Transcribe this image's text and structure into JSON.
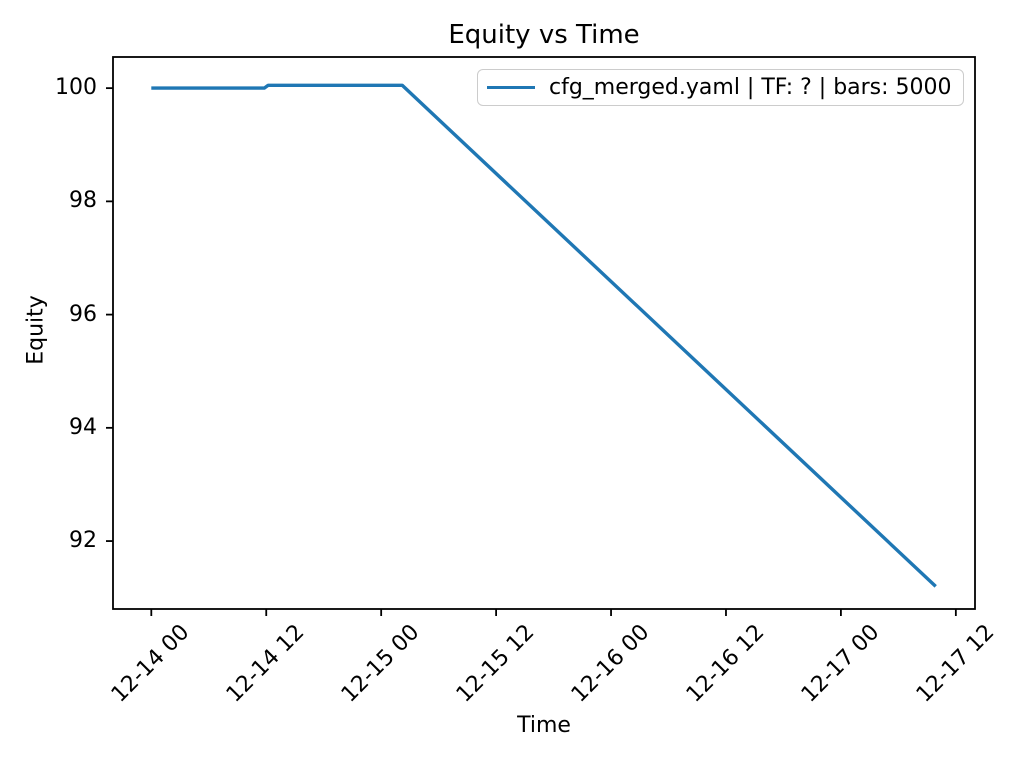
{
  "figure": {
    "background": "#ffffff",
    "text_color": "#000000",
    "spine_color": "#000000",
    "legend_border_color": "#cccccc"
  },
  "chart_data": {
    "type": "line",
    "title": "Equity vs Time",
    "xlabel": "Time",
    "ylabel": "Equity",
    "grid": false,
    "x_axis": {
      "tick_labels": [
        "12-14 00",
        "12-14 12",
        "12-15 00",
        "12-15 12",
        "12-16 00",
        "12-16 12",
        "12-17 00",
        "12-17 12"
      ],
      "tick_hours": [
        0,
        12,
        24,
        36,
        48,
        60,
        72,
        84
      ],
      "range_hours": [
        -4.0,
        86.0
      ],
      "tick_rotation_deg": 45
    },
    "y_axis": {
      "tick_labels": [
        "100",
        "98",
        "96",
        "94",
        "92"
      ],
      "tick_values": [
        100,
        98,
        96,
        94,
        92
      ],
      "range": [
        90.8,
        100.55
      ]
    },
    "legend": {
      "position": "upper right",
      "entries": [
        {
          "label": "cfg_merged.yaml | TF: ? | bars: 5000",
          "color": "#1f77b4"
        }
      ]
    },
    "series": [
      {
        "name": "cfg_merged.yaml | TF: ? | bars: 5000",
        "color": "#1f77b4",
        "line_width": 3.4,
        "points_hours_equity": [
          [
            0.0,
            100.0
          ],
          [
            11.8,
            100.0
          ],
          [
            12.2,
            100.05
          ],
          [
            26.2,
            100.05
          ],
          [
            81.9,
            91.2
          ]
        ]
      }
    ]
  }
}
